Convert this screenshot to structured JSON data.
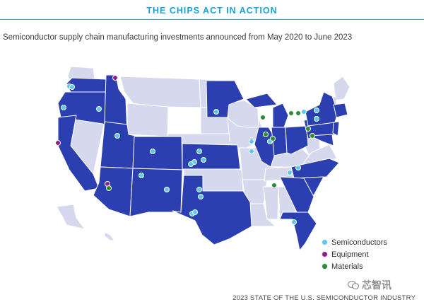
{
  "header": {
    "title": "THE CHIPS ACT IN ACTION"
  },
  "subtitle": "Semiconductor supply chain manufacturing investments announced from May 2020 to June 2023",
  "colors": {
    "accent": "#1aa1d8",
    "state_highlight": "#2c3fb1",
    "state_other": "#d6d9ed",
    "semiconductors": "#5bc8ef",
    "equipment": "#8e1f8f",
    "materials": "#2c8a35"
  },
  "legend": [
    {
      "label": "Semiconductors",
      "color": "#5bc8ef"
    },
    {
      "label": "Equipment",
      "color": "#8e1f8f"
    },
    {
      "label": "Materials",
      "color": "#2c8a35"
    }
  ],
  "watermark": "芯智讯",
  "footer": "2023 STATE OF THE U.S. SEMICONDUCTOR INDUSTRY"
}
